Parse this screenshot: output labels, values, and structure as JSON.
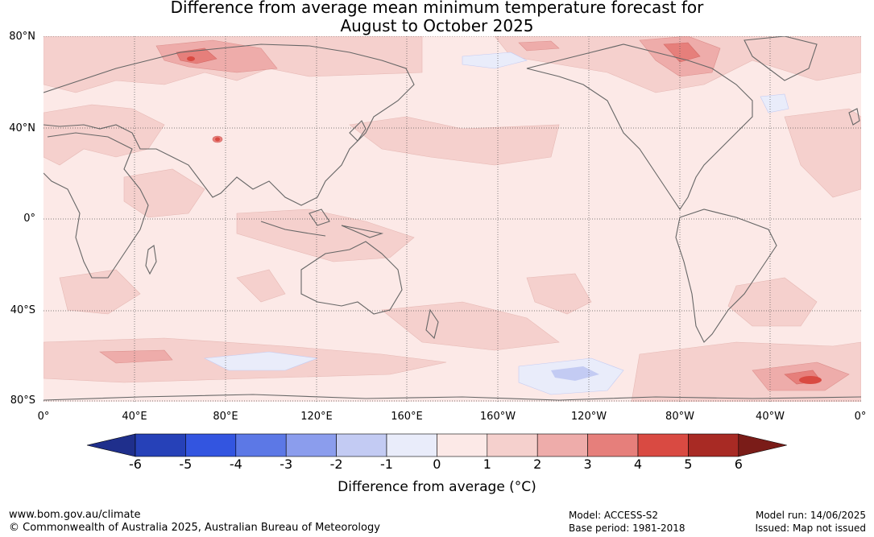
{
  "title_line1": "Difference from average mean minimum temperature forecast for",
  "title_line2": "August to October 2025",
  "lat_labels": [
    "80°N",
    "40°N",
    "0°",
    "40°S",
    "80°S"
  ],
  "lon_labels": [
    "0°",
    "40°E",
    "80°E",
    "120°E",
    "160°E",
    "160°W",
    "120°W",
    "80°W",
    "40°W",
    "0°"
  ],
  "legend": {
    "ticks": [
      "-6",
      "-5",
      "-4",
      "-3",
      "-2",
      "-1",
      "0",
      "1",
      "2",
      "3",
      "4",
      "5",
      "6"
    ],
    "colors": [
      "#1f2f8c",
      "#2641b8",
      "#3355e0",
      "#5c78e6",
      "#8b9ded",
      "#c3cbf3",
      "#e9ecfa",
      "#fce9e7",
      "#f5d0cd",
      "#eeacaa",
      "#e67f7b",
      "#d94a42",
      "#a82a24",
      "#7a1c18"
    ],
    "label": "Difference from average (°C)"
  },
  "footer": {
    "url": "www.bom.gov.au/climate",
    "copyright": "© Commonwealth of Australia 2025, Australian Bureau of Meteorology",
    "model": "Model: ACCESS-S2",
    "base_period": "Base period: 1981-2018",
    "model_run": "Model run: 14/06/2025",
    "issued": "Issued: Map not issued"
  }
}
